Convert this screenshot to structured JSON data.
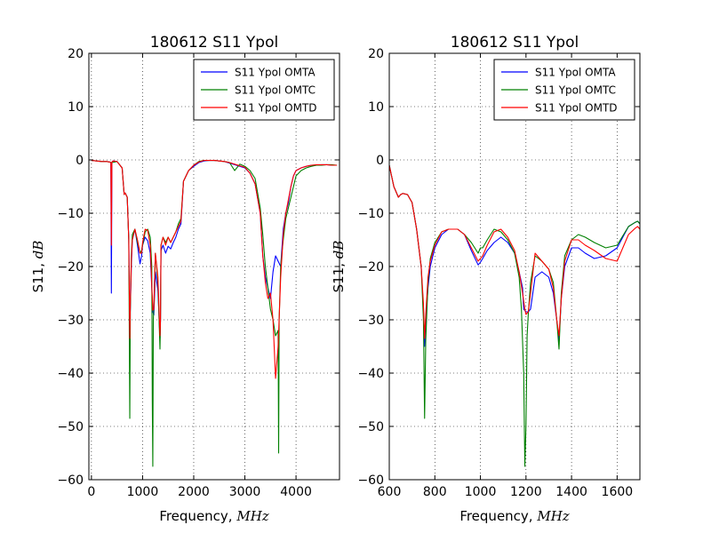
{
  "chart_data": [
    {
      "type": "line",
      "title": "180612 S11 Ypol",
      "xlabel": "Frequency,",
      "xlabel_unit": "MHz",
      "ylabel": "S11,",
      "ylabel_unit": "dB",
      "xlim": [
        -50,
        4850
      ],
      "ylim": [
        -60,
        20
      ],
      "xticks": [
        0,
        1000,
        2000,
        3000,
        4000
      ],
      "yticks": [
        20,
        10,
        0,
        -10,
        -20,
        -30,
        -40,
        -50,
        -60
      ],
      "xtick_labels": [
        "0",
        "1000",
        "2000",
        "3000",
        "4000"
      ],
      "ytick_labels": [
        "20",
        "10",
        "0",
        "−10",
        "−20",
        "−30",
        "−40",
        "−50",
        "−60"
      ],
      "grid": true,
      "legend_position": "top-right",
      "series": [
        {
          "name": "S11 Ypol OMTA",
          "color": "#0000ff",
          "x": [
            0,
            100,
            200,
            300,
            360,
            380,
            390,
            400,
            410,
            420,
            500,
            600,
            640,
            660,
            700,
            730,
            750,
            760,
            780,
            800,
            850,
            900,
            950,
            980,
            1000,
            1050,
            1100,
            1150,
            1200,
            1220,
            1250,
            1300,
            1340,
            1350,
            1360,
            1400,
            1450,
            1500,
            1550,
            1600,
            1650,
            1700,
            1750,
            1800,
            1900,
            2000,
            2100,
            2200,
            2300,
            2400,
            2500,
            2600,
            2700,
            2800,
            2900,
            3000,
            3100,
            3200,
            3300,
            3350,
            3400,
            3450,
            3500,
            3550,
            3600,
            3650,
            3700,
            3750,
            3800,
            3850,
            3900,
            3950,
            4000,
            4100,
            4200,
            4300,
            4400,
            4500,
            4600,
            4700,
            4800
          ],
          "y": [
            -0.1,
            -0.2,
            -0.3,
            -0.3,
            -0.4,
            -0.5,
            -25,
            -0.5,
            -0.3,
            -0.2,
            -0.3,
            -1.5,
            -6.5,
            -6.2,
            -7,
            -15,
            -30,
            -28,
            -20,
            -15,
            -13,
            -16,
            -19.5,
            -18,
            -16,
            -14.5,
            -15.2,
            -17.5,
            -28.5,
            -29.1,
            -21,
            -24.5,
            -33.5,
            -30,
            -17,
            -16,
            -17.5,
            -16.2,
            -16.7,
            -15.5,
            -14.5,
            -13,
            -12,
            -4,
            -2,
            -1.2,
            -0.5,
            -0.2,
            -0.1,
            -0.1,
            -0.2,
            -0.3,
            -0.6,
            -0.9,
            -1.2,
            -1.5,
            -2.5,
            -4.5,
            -10,
            -18,
            -22,
            -24,
            -26,
            -21,
            -18,
            -19,
            -20,
            -13,
            -10,
            -8,
            -5,
            -3,
            -2,
            -1.5,
            -1.2,
            -1,
            -1,
            -0.9,
            -0.9,
            -1,
            -1
          ]
        },
        {
          "name": "S11 Ypol OMTC",
          "color": "#008000",
          "x": [
            0,
            100,
            200,
            300,
            400,
            500,
            600,
            640,
            660,
            700,
            730,
            750,
            760,
            780,
            800,
            850,
            900,
            950,
            980,
            1000,
            1050,
            1100,
            1150,
            1180,
            1190,
            1200,
            1210,
            1220,
            1250,
            1300,
            1340,
            1350,
            1360,
            1400,
            1450,
            1500,
            1550,
            1600,
            1650,
            1700,
            1750,
            1800,
            1900,
            2000,
            2100,
            2200,
            2300,
            2400,
            2500,
            2600,
            2700,
            2800,
            2900,
            3000,
            3100,
            3200,
            3300,
            3350,
            3400,
            3450,
            3500,
            3550,
            3600,
            3650,
            3660,
            3670,
            3700,
            3750,
            3800,
            3850,
            3900,
            3950,
            4000,
            4100,
            4200,
            4300,
            4400,
            4500,
            4600,
            4700,
            4800
          ],
          "y": [
            -0.1,
            -0.2,
            -0.3,
            -0.3,
            -0.5,
            -0.3,
            -1.5,
            -6.5,
            -6.2,
            -7,
            -15,
            -48.5,
            -28,
            -18,
            -14,
            -13,
            -15.5,
            -17.5,
            -17,
            -16,
            -13.5,
            -13,
            -14.5,
            -20,
            -45,
            -57.5,
            -30,
            -27.5,
            -17.5,
            -23,
            -35.5,
            -30,
            -16,
            -14.5,
            -15.5,
            -14.5,
            -15.5,
            -14.5,
            -13.5,
            -12,
            -11,
            -4,
            -2,
            -1,
            -0.3,
            -0.1,
            -0.1,
            -0.1,
            -0.2,
            -0.3,
            -0.5,
            -2,
            -0.8,
            -1.2,
            -2,
            -3.5,
            -9,
            -14,
            -20,
            -24,
            -28,
            -30,
            -33,
            -32,
            -55,
            -30,
            -20,
            -15,
            -11,
            -9,
            -7,
            -5,
            -3,
            -2,
            -1.5,
            -1.2,
            -1,
            -1,
            -0.9,
            -0.9,
            -1
          ]
        },
        {
          "name": "S11 Ypol OMTD",
          "color": "#ff0000",
          "x": [
            0,
            100,
            200,
            300,
            360,
            380,
            390,
            400,
            410,
            420,
            500,
            600,
            640,
            660,
            700,
            730,
            750,
            760,
            780,
            800,
            850,
            900,
            950,
            980,
            1000,
            1050,
            1100,
            1150,
            1200,
            1220,
            1250,
            1300,
            1340,
            1350,
            1360,
            1400,
            1450,
            1500,
            1550,
            1600,
            1650,
            1700,
            1750,
            1800,
            1900,
            2000,
            2100,
            2200,
            2300,
            2400,
            2500,
            2600,
            2700,
            2800,
            2900,
            3000,
            3100,
            3200,
            3300,
            3350,
            3400,
            3450,
            3500,
            3550,
            3600,
            3650,
            3700,
            3750,
            3800,
            3850,
            3900,
            3950,
            4000,
            4100,
            4200,
            4300,
            4400,
            4500,
            4600,
            4700,
            4800
          ],
          "y": [
            -0.1,
            -0.2,
            -0.3,
            -0.3,
            -0.4,
            -0.5,
            -16,
            -0.5,
            -0.3,
            -0.2,
            -0.3,
            -1.5,
            -6.5,
            -6.2,
            -7,
            -15,
            -33.5,
            -27,
            -19,
            -15,
            -13,
            -15,
            -17.5,
            -17.5,
            -15.5,
            -13,
            -13.2,
            -16,
            -28.2,
            -28,
            -17.5,
            -22,
            -33,
            -30,
            -16,
            -14.5,
            -16,
            -14.5,
            -15.5,
            -14.5,
            -13.5,
            -12.5,
            -11.5,
            -4,
            -2,
            -1,
            -0.4,
            -0.1,
            -0.1,
            -0.1,
            -0.2,
            -0.3,
            -0.5,
            -0.8,
            -1.1,
            -1.4,
            -2.5,
            -4.5,
            -10,
            -18,
            -23,
            -26,
            -25,
            -30,
            -41,
            -35,
            -22,
            -14,
            -10,
            -7.5,
            -5,
            -3,
            -2,
            -1.5,
            -1.2,
            -1,
            -0.9,
            -0.9,
            -0.9,
            -1,
            -1
          ]
        }
      ]
    },
    {
      "type": "line",
      "title": "180612 S11 Ypol",
      "xlabel": "Frequency,",
      "xlabel_unit": "MHz",
      "ylabel": "S11,",
      "ylabel_unit": "dB",
      "xlim": [
        600,
        1700
      ],
      "ylim": [
        -60,
        20
      ],
      "xticks": [
        600,
        800,
        1000,
        1200,
        1400,
        1600
      ],
      "yticks": [
        20,
        10,
        0,
        -10,
        -20,
        -30,
        -40,
        -50,
        -60
      ],
      "xtick_labels": [
        "600",
        "800",
        "1000",
        "1200",
        "1400",
        "1600"
      ],
      "ytick_labels": [
        "20",
        "10",
        "0",
        "−10",
        "−20",
        "−30",
        "−40",
        "−50",
        "−60"
      ],
      "grid": true,
      "legend_position": "top-right",
      "series": [
        {
          "name": "S11 Ypol OMTA",
          "color": "#0000ff",
          "x": [
            600,
            610,
            620,
            640,
            650,
            660,
            680,
            700,
            720,
            740,
            750,
            755,
            760,
            770,
            780,
            800,
            830,
            860,
            900,
            930,
            960,
            990,
            1000,
            1010,
            1030,
            1060,
            1090,
            1120,
            1150,
            1170,
            1185,
            1190,
            1200,
            1210,
            1220,
            1240,
            1270,
            1300,
            1320,
            1335,
            1345,
            1355,
            1370,
            1400,
            1430,
            1460,
            1500,
            1550,
            1600,
            1650,
            1680,
            1690,
            1700
          ],
          "y": [
            -1,
            -3,
            -5,
            -7,
            -6.5,
            -6.3,
            -6.5,
            -8,
            -13,
            -20,
            -28,
            -35,
            -30,
            -24,
            -20,
            -16.5,
            -14,
            -13,
            -13,
            -14,
            -17,
            -19.7,
            -19.2,
            -18.5,
            -17,
            -15.5,
            -14.5,
            -15.5,
            -17.5,
            -21,
            -24,
            -28,
            -28.5,
            -28.5,
            -28,
            -22,
            -21,
            -22,
            -25,
            -30,
            -34,
            -26,
            -20,
            -16.5,
            -16.5,
            -17.5,
            -18.5,
            -18,
            -16.5,
            -12.5,
            -11.7,
            -11.5,
            -12
          ]
        },
        {
          "name": "S11 Ypol OMTC",
          "color": "#008000",
          "x": [
            600,
            610,
            620,
            640,
            650,
            660,
            680,
            700,
            720,
            740,
            750,
            755,
            760,
            770,
            780,
            800,
            830,
            860,
            900,
            930,
            960,
            990,
            1000,
            1010,
            1030,
            1060,
            1090,
            1120,
            1150,
            1170,
            1180,
            1190,
            1195,
            1200,
            1205,
            1210,
            1220,
            1240,
            1270,
            1300,
            1320,
            1335,
            1345,
            1355,
            1370,
            1400,
            1430,
            1460,
            1500,
            1550,
            1600,
            1650,
            1680,
            1690,
            1700
          ],
          "y": [
            -1,
            -3,
            -5,
            -7,
            -6.5,
            -6.3,
            -6.5,
            -8,
            -13,
            -20,
            -30,
            -48.5,
            -34,
            -23,
            -18.5,
            -15.5,
            -13.5,
            -13,
            -13,
            -14,
            -15.5,
            -17.5,
            -16.5,
            -16.5,
            -15,
            -13,
            -13.5,
            -15,
            -17.5,
            -22,
            -28,
            -40,
            -57.5,
            -50,
            -33,
            -29,
            -23,
            -18,
            -19,
            -20.5,
            -23,
            -30,
            -35.5,
            -25,
            -18,
            -15,
            -14,
            -14.5,
            -15.5,
            -16.5,
            -16,
            -12.5,
            -11.7,
            -11.5,
            -12
          ]
        },
        {
          "name": "S11 Ypol OMTD",
          "color": "#ff0000",
          "x": [
            600,
            610,
            620,
            640,
            650,
            660,
            680,
            700,
            720,
            740,
            750,
            755,
            760,
            770,
            780,
            800,
            830,
            860,
            900,
            930,
            960,
            990,
            1000,
            1010,
            1030,
            1060,
            1090,
            1120,
            1150,
            1170,
            1185,
            1195,
            1200,
            1210,
            1220,
            1240,
            1270,
            1300,
            1320,
            1335,
            1345,
            1355,
            1370,
            1400,
            1430,
            1460,
            1500,
            1550,
            1600,
            1650,
            1680,
            1690,
            1700
          ],
          "y": [
            -1,
            -3,
            -5,
            -7,
            -6.5,
            -6.3,
            -6.5,
            -8,
            -13,
            -20,
            -27,
            -33.5,
            -29,
            -22,
            -19,
            -16,
            -13.5,
            -13,
            -13,
            -14,
            -16.5,
            -19,
            -18.5,
            -18,
            -16,
            -13.5,
            -13,
            -14.5,
            -17,
            -21,
            -25,
            -28,
            -29,
            -28.5,
            -25,
            -17.5,
            -19,
            -20.5,
            -24,
            -30,
            -33,
            -26,
            -19,
            -15,
            -15,
            -16,
            -17,
            -18.5,
            -19,
            -14,
            -12.8,
            -12.5,
            -13
          ]
        }
      ]
    }
  ]
}
